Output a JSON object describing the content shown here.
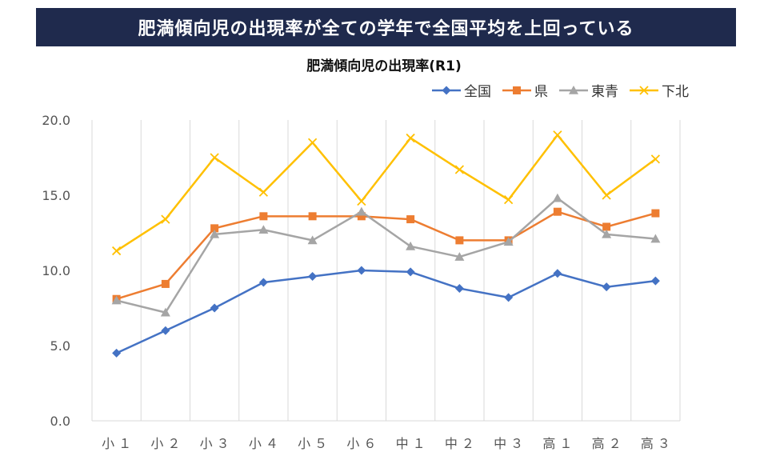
{
  "banner": {
    "text": "肥満傾向児の出現率が全ての学年で全国平均を上回っている"
  },
  "chart_data": {
    "type": "line",
    "title": "肥満傾向児の出現率(R1)",
    "xlabel": "",
    "ylabel": "",
    "categories": [
      "小１",
      "小２",
      "小３",
      "小４",
      "小５",
      "小６",
      "中１",
      "中２",
      "中３",
      "高１",
      "高２",
      "高３"
    ],
    "ylim": [
      0,
      20
    ],
    "yticks": [
      "0.0",
      "5.0",
      "10.0",
      "15.0",
      "20.0"
    ],
    "grid": "vertical",
    "legend_position": "top-right",
    "series": [
      {
        "name": "全国",
        "color": "#4472c4",
        "marker": "diamond",
        "values": [
          4.5,
          6.0,
          7.5,
          9.2,
          9.6,
          10.0,
          9.9,
          8.8,
          8.2,
          9.8,
          8.9,
          9.3
        ]
      },
      {
        "name": "県",
        "color": "#ed7d31",
        "marker": "square",
        "values": [
          8.1,
          9.1,
          12.8,
          13.6,
          13.6,
          13.6,
          13.4,
          12.0,
          12.0,
          13.9,
          12.9,
          13.8
        ]
      },
      {
        "name": "東青",
        "color": "#a5a5a5",
        "marker": "triangle",
        "values": [
          8.0,
          7.2,
          12.4,
          12.7,
          12.0,
          13.9,
          11.6,
          10.9,
          11.9,
          14.8,
          12.4,
          12.1
        ]
      },
      {
        "name": "下北",
        "color": "#ffc000",
        "marker": "x",
        "values": [
          11.3,
          13.4,
          17.5,
          15.2,
          18.5,
          14.6,
          18.8,
          16.7,
          14.7,
          19.0,
          15.0,
          17.4
        ]
      }
    ]
  }
}
